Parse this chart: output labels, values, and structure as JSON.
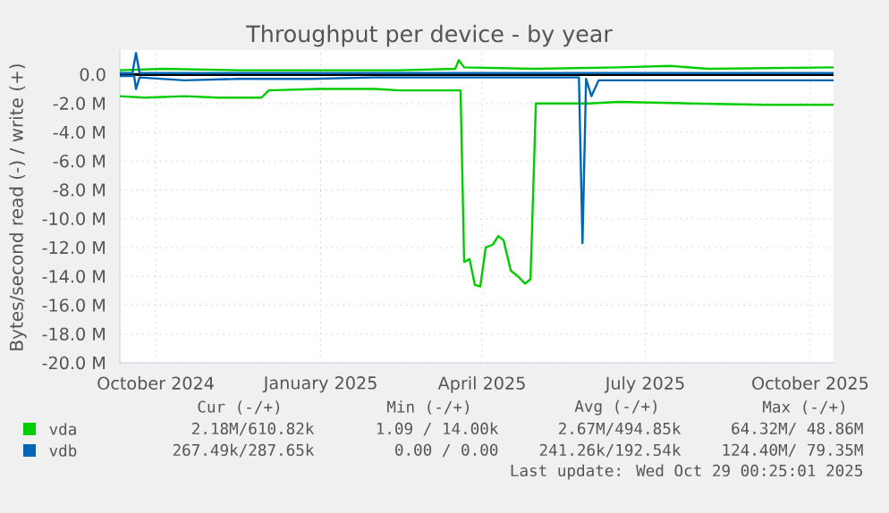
{
  "chart_data": {
    "type": "line",
    "title": "Throughput per device - by year",
    "ylabel": "Bytes/second read (-) / write (+)",
    "xlim": [
      "2024-09-26",
      "2025-10-29"
    ],
    "ylim": [
      -20,
      1.7
    ],
    "xticks": [
      {
        "value": "2024-10-16",
        "label": "October 2024"
      },
      {
        "value": "2025-01-16",
        "label": "January 2025"
      },
      {
        "value": "2025-04-16",
        "label": "April 2025"
      },
      {
        "value": "2025-07-16",
        "label": "July 2025"
      },
      {
        "value": "2025-10-16",
        "label": "October 2025"
      }
    ],
    "yticks": [
      {
        "value": 0,
        "label": "0.0"
      },
      {
        "value": -2,
        "label": "-2.0 M"
      },
      {
        "value": -4,
        "label": "-4.0 M"
      },
      {
        "value": -6,
        "label": "-6.0 M"
      },
      {
        "value": -8,
        "label": "-8.0 M"
      },
      {
        "value": -10,
        "label": "-10.0 M"
      },
      {
        "value": -12,
        "label": "-12.0 M"
      },
      {
        "value": -14,
        "label": "-14.0 M"
      },
      {
        "value": -16,
        "label": "-16.0 M"
      },
      {
        "value": -18,
        "label": "-18.0 M"
      },
      {
        "value": -20,
        "label": "-20.0 M"
      }
    ],
    "grid": true,
    "legend": "bottom",
    "ref_lines": [
      {
        "axis": "y",
        "value": 0,
        "color": "#000000"
      }
    ],
    "series": [
      {
        "name": "vda",
        "color": "#00cc00",
        "x": [
          "2024-09-26",
          "2024-10-10",
          "2024-11-01",
          "2024-11-20",
          "2024-12-14",
          "2024-12-18",
          "2025-01-15",
          "2025-02-15",
          "2025-03-01",
          "2025-04-04",
          "2025-04-06",
          "2025-04-09",
          "2025-04-12",
          "2025-04-15",
          "2025-04-18",
          "2025-04-22",
          "2025-04-25",
          "2025-04-28",
          "2025-05-02",
          "2025-05-06",
          "2025-05-10",
          "2025-05-13",
          "2025-05-16",
          "2025-06-15",
          "2025-07-01",
          "2025-08-10",
          "2025-09-20",
          "2025-10-29"
        ],
        "values": [
          -1.5,
          -1.6,
          -1.5,
          -1.6,
          -1.6,
          -1.1,
          -1.0,
          -1.0,
          -1.1,
          -1.1,
          -13.0,
          -12.8,
          -14.6,
          -14.7,
          -12.0,
          -11.8,
          -11.2,
          -11.5,
          -13.6,
          -14.0,
          -14.5,
          -14.2,
          -2.0,
          -2.0,
          -1.9,
          -2.0,
          -2.1,
          -2.1
        ]
      },
      {
        "color": "#00cc00",
        "x": [
          "2024-09-26",
          "2024-10-20",
          "2024-12-01",
          "2025-01-15",
          "2025-03-01",
          "2025-04-01",
          "2025-04-03",
          "2025-04-06",
          "2025-05-15",
          "2025-07-01",
          "2025-07-30",
          "2025-08-20",
          "2025-10-29"
        ],
        "values": [
          0.3,
          0.4,
          0.3,
          0.3,
          0.3,
          0.4,
          1.0,
          0.5,
          0.4,
          0.5,
          0.6,
          0.4,
          0.5
        ]
      },
      {
        "name": "vdb",
        "color": "#0066b3",
        "x": [
          "2024-09-26",
          "2024-10-04",
          "2024-10-05",
          "2024-10-07",
          "2024-11-01",
          "2024-12-01",
          "2025-01-10",
          "2025-02-15",
          "2025-06-09",
          "2025-06-11",
          "2025-06-13",
          "2025-06-16",
          "2025-06-20",
          "2025-08-01",
          "2025-10-29"
        ],
        "values": [
          -0.1,
          -0.1,
          -1.0,
          -0.2,
          -0.4,
          -0.3,
          -0.3,
          -0.2,
          -0.2,
          -11.7,
          -0.3,
          -1.5,
          -0.4,
          -0.4,
          -0.4
        ]
      },
      {
        "color": "#0066b3",
        "x": [
          "2024-09-26",
          "2024-10-03",
          "2024-10-05",
          "2024-10-07",
          "2025-06-10",
          "2025-10-29"
        ],
        "values": [
          0.1,
          0.1,
          1.5,
          0.1,
          0.1,
          0.1
        ]
      }
    ],
    "annotations": [
      "Cur (-/+)",
      "Min (-/+)",
      "Avg (-/+)",
      "Max (-/+)",
      "2.18M/610.82k",
      "1.09 / 14.00k",
      "2.67M/494.85k",
      "64.32M/ 48.86M",
      "267.49k/287.65k",
      "0.00 /  0.00",
      "241.26k/192.54k",
      "124.40M/ 79.35M",
      "Last update: Wed Oct 29 00:25:01 2025"
    ]
  }
}
